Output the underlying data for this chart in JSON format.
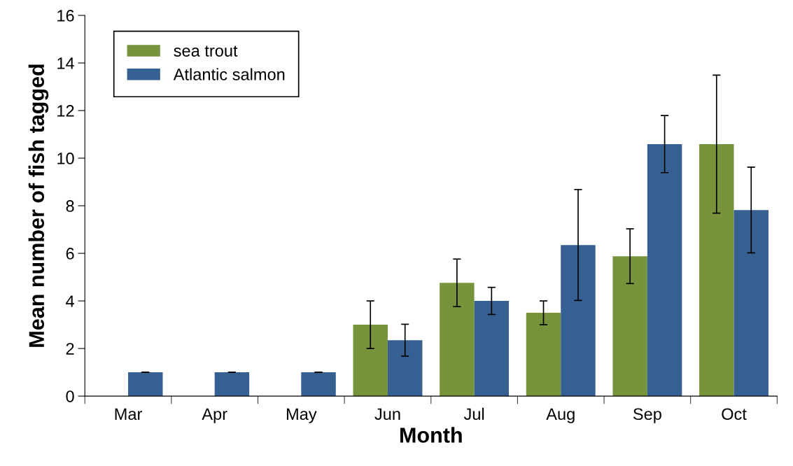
{
  "chart_data": {
    "type": "bar",
    "xlabel": "Month",
    "ylabel": "Mean number of fish tagged",
    "categories": [
      "Mar",
      "Apr",
      "May",
      "Jun",
      "Jul",
      "Aug",
      "Sep",
      "Oct"
    ],
    "series": [
      {
        "name": "sea trout",
        "color": "#77933c",
        "values": [
          0,
          0,
          0,
          3.0,
          4.76,
          3.5,
          5.88,
          10.59
        ],
        "errors": [
          null,
          null,
          null,
          1.0,
          1.0,
          0.5,
          1.15,
          2.9
        ]
      },
      {
        "name": "Atlantic salmon",
        "color": "#376092",
        "values": [
          1.0,
          1.0,
          1.0,
          2.35,
          4.0,
          6.35,
          10.59,
          7.82
        ],
        "errors": [
          0,
          0,
          0,
          0.67,
          0.57,
          2.33,
          1.2,
          1.8
        ]
      }
    ],
    "ylim": [
      0,
      16
    ],
    "yticks": [
      0,
      2,
      4,
      6,
      8,
      10,
      12,
      14,
      16
    ],
    "grid": false,
    "legend": "top left"
  }
}
